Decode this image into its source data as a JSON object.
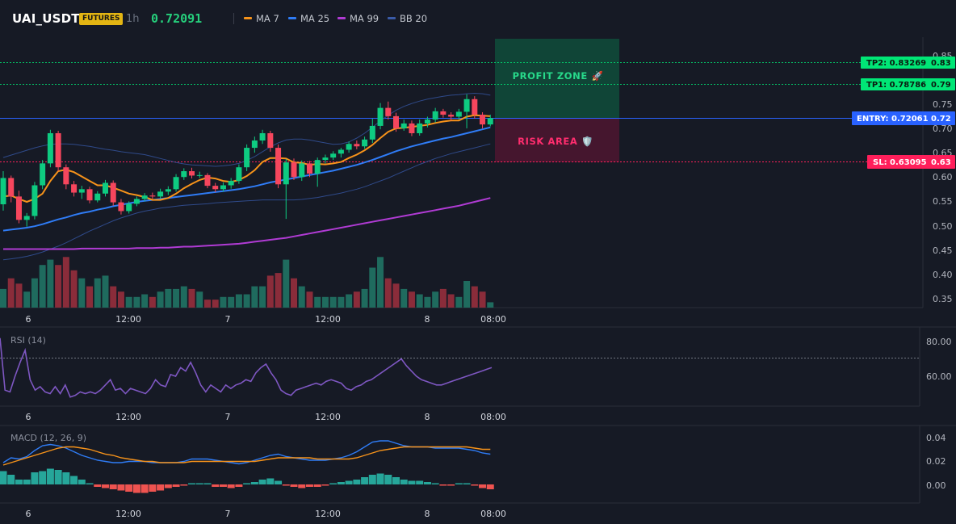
{
  "header": {
    "symbol": "UAI_USDT",
    "badge": "FUTURES",
    "timeframe": "1h",
    "last_price": "0.72091",
    "indicators": [
      {
        "label": "MA 7",
        "color": "#f7931a"
      },
      {
        "label": "MA 25",
        "color": "#2f7cf6"
      },
      {
        "label": "MA 99",
        "color": "#b03bd4"
      },
      {
        "label": "BB 20",
        "color": "#3a5ba8"
      }
    ]
  },
  "price_axis": {
    "ticks": [
      "0.85",
      "0.80",
      "0.75",
      "0.70",
      "0.65",
      "0.60",
      "0.55",
      "0.50",
      "0.45",
      "0.40",
      "0.35"
    ]
  },
  "time_axis": {
    "labels": [
      "6",
      "12:00",
      "7",
      "12:00",
      "8",
      "08:00"
    ]
  },
  "zones": {
    "profit_label": "PROFIT ZONE 🚀",
    "risk_label": "RISK AREA 🛡️"
  },
  "levels": {
    "tp2": {
      "label": "TP2: 0.83269",
      "axis": "0.83",
      "value": 0.83269,
      "color": "#00e676"
    },
    "tp1": {
      "label": "TP1: 0.78786",
      "axis": "0.79",
      "value": 0.78786,
      "color": "#00e676"
    },
    "entry": {
      "label": "ENTRY: 0.72061",
      "axis": "0.72",
      "value": 0.72061,
      "color": "#2962ff"
    },
    "sl": {
      "label": "SL: 0.63095",
      "axis": "0.63",
      "value": 0.63095,
      "color": "#ff1f5b"
    }
  },
  "rsi": {
    "title": "RSI (14)",
    "ticks": [
      "80.00",
      "60.00"
    ],
    "overbought": 70,
    "values": [
      82,
      52,
      51,
      60,
      68,
      75,
      58,
      52,
      54,
      51,
      50,
      54,
      50,
      55,
      48,
      49,
      51,
      50,
      51,
      50,
      52,
      55,
      58,
      52,
      53,
      50,
      53,
      52,
      51,
      50,
      53,
      58,
      55,
      54,
      61,
      60,
      65,
      63,
      68,
      62,
      55,
      51,
      55,
      53,
      51,
      55,
      53,
      55,
      56,
      58,
      57,
      62,
      65,
      67,
      62,
      58,
      52,
      50,
      49,
      52,
      53,
      54,
      55,
      56,
      55,
      57,
      58,
      57,
      56,
      53,
      52,
      54,
      55,
      57,
      58,
      60,
      62,
      64,
      66,
      68,
      70,
      66,
      63,
      60,
      58,
      57,
      56,
      55,
      55,
      56,
      57,
      58,
      59,
      60,
      61,
      62,
      63,
      64,
      65
    ]
  },
  "macd": {
    "title": "MACD (12, 26, 9)",
    "ticks": [
      "0.04",
      "0.02",
      "0.00"
    ]
  },
  "candles": [
    [
      0.544,
      0.598,
      0.531,
      0.612
    ],
    [
      0.598,
      0.56,
      0.548,
      0.603
    ],
    [
      0.56,
      0.512,
      0.505,
      0.572
    ],
    [
      0.512,
      0.52,
      0.498,
      0.526
    ],
    [
      0.52,
      0.583,
      0.513,
      0.59
    ],
    [
      0.583,
      0.628,
      0.575,
      0.635
    ],
    [
      0.628,
      0.69,
      0.62,
      0.697
    ],
    [
      0.69,
      0.62,
      0.612,
      0.695
    ],
    [
      0.62,
      0.585,
      0.575,
      0.626
    ],
    [
      0.585,
      0.568,
      0.56,
      0.592
    ],
    [
      0.568,
      0.575,
      0.555,
      0.582
    ],
    [
      0.575,
      0.552,
      0.546,
      0.58
    ],
    [
      0.552,
      0.566,
      0.548,
      0.571
    ],
    [
      0.566,
      0.588,
      0.56,
      0.594
    ],
    [
      0.588,
      0.548,
      0.541,
      0.593
    ],
    [
      0.548,
      0.53,
      0.523,
      0.555
    ],
    [
      0.53,
      0.545,
      0.525,
      0.55
    ],
    [
      0.545,
      0.555,
      0.54,
      0.56
    ],
    [
      0.555,
      0.562,
      0.55,
      0.567
    ],
    [
      0.562,
      0.56,
      0.555,
      0.568
    ],
    [
      0.56,
      0.57,
      0.556,
      0.576
    ],
    [
      0.57,
      0.575,
      0.563,
      0.581
    ],
    [
      0.575,
      0.6,
      0.57,
      0.606
    ],
    [
      0.6,
      0.612,
      0.594,
      0.618
    ],
    [
      0.612,
      0.603,
      0.597,
      0.619
    ],
    [
      0.603,
      0.604,
      0.598,
      0.611
    ],
    [
      0.604,
      0.582,
      0.577,
      0.608
    ],
    [
      0.582,
      0.575,
      0.569,
      0.588
    ],
    [
      0.575,
      0.583,
      0.57,
      0.589
    ],
    [
      0.583,
      0.592,
      0.576,
      0.598
    ],
    [
      0.592,
      0.62,
      0.586,
      0.626
    ],
    [
      0.62,
      0.66,
      0.612,
      0.667
    ],
    [
      0.66,
      0.675,
      0.65,
      0.683
    ],
    [
      0.675,
      0.69,
      0.668,
      0.697
    ],
    [
      0.69,
      0.66,
      0.652,
      0.695
    ],
    [
      0.66,
      0.585,
      0.577,
      0.667
    ],
    [
      0.585,
      0.63,
      0.514,
      0.637
    ],
    [
      0.63,
      0.6,
      0.594,
      0.638
    ],
    [
      0.6,
      0.628,
      0.592,
      0.634
    ],
    [
      0.628,
      0.607,
      0.6,
      0.633
    ],
    [
      0.607,
      0.635,
      0.58,
      0.64
    ],
    [
      0.635,
      0.64,
      0.628,
      0.646
    ],
    [
      0.64,
      0.648,
      0.635,
      0.653
    ],
    [
      0.648,
      0.656,
      0.64,
      0.66
    ],
    [
      0.656,
      0.668,
      0.65,
      0.673
    ],
    [
      0.668,
      0.663,
      0.657,
      0.675
    ],
    [
      0.663,
      0.677,
      0.658,
      0.683
    ],
    [
      0.677,
      0.705,
      0.67,
      0.72
    ],
    [
      0.705,
      0.742,
      0.698,
      0.752
    ],
    [
      0.742,
      0.725,
      0.718,
      0.755
    ],
    [
      0.725,
      0.7,
      0.693,
      0.732
    ],
    [
      0.7,
      0.71,
      0.695,
      0.718
    ],
    [
      0.71,
      0.69,
      0.684,
      0.716
    ],
    [
      0.69,
      0.71,
      0.685,
      0.718
    ],
    [
      0.71,
      0.718,
      0.702,
      0.724
    ],
    [
      0.718,
      0.735,
      0.712,
      0.742
    ],
    [
      0.735,
      0.728,
      0.722,
      0.74
    ],
    [
      0.728,
      0.724,
      0.716,
      0.733
    ],
    [
      0.724,
      0.734,
      0.718,
      0.74
    ],
    [
      0.734,
      0.76,
      0.7,
      0.77
    ],
    [
      0.76,
      0.728,
      0.72,
      0.766
    ],
    [
      0.728,
      0.708,
      0.7,
      0.733
    ],
    [
      0.708,
      0.721,
      0.704,
      0.728
    ]
  ],
  "ma": {
    "ma7": [
      0.56,
      0.562,
      0.555,
      0.549,
      0.555,
      0.566,
      0.592,
      0.612,
      0.615,
      0.61,
      0.601,
      0.592,
      0.583,
      0.583,
      0.578,
      0.572,
      0.566,
      0.563,
      0.559,
      0.553,
      0.553,
      0.557,
      0.566,
      0.577,
      0.586,
      0.594,
      0.599,
      0.597,
      0.592,
      0.59,
      0.594,
      0.602,
      0.614,
      0.631,
      0.639,
      0.639,
      0.638,
      0.63,
      0.629,
      0.625,
      0.627,
      0.626,
      0.628,
      0.631,
      0.639,
      0.646,
      0.655,
      0.666,
      0.68,
      0.693,
      0.7,
      0.701,
      0.703,
      0.705,
      0.707,
      0.711,
      0.714,
      0.716,
      0.716,
      0.724,
      0.727,
      0.726,
      0.725
    ],
    "ma25": [
      0.49,
      0.492,
      0.494,
      0.496,
      0.499,
      0.503,
      0.508,
      0.513,
      0.517,
      0.522,
      0.526,
      0.529,
      0.533,
      0.536,
      0.54,
      0.543,
      0.546,
      0.549,
      0.551,
      0.553,
      0.555,
      0.557,
      0.559,
      0.561,
      0.563,
      0.565,
      0.567,
      0.569,
      0.571,
      0.573,
      0.575,
      0.578,
      0.581,
      0.585,
      0.589,
      0.592,
      0.595,
      0.598,
      0.601,
      0.604,
      0.607,
      0.61,
      0.613,
      0.617,
      0.621,
      0.625,
      0.63,
      0.635,
      0.641,
      0.647,
      0.653,
      0.658,
      0.663,
      0.667,
      0.671,
      0.675,
      0.679,
      0.682,
      0.686,
      0.69,
      0.694,
      0.698,
      0.702
    ],
    "ma99": [
      0.452,
      0.452,
      0.452,
      0.452,
      0.452,
      0.452,
      0.452,
      0.452,
      0.452,
      0.452,
      0.453,
      0.453,
      0.453,
      0.453,
      0.453,
      0.453,
      0.453,
      0.454,
      0.454,
      0.454,
      0.455,
      0.455,
      0.456,
      0.457,
      0.457,
      0.458,
      0.459,
      0.46,
      0.461,
      0.462,
      0.463,
      0.465,
      0.467,
      0.469,
      0.471,
      0.473,
      0.475,
      0.478,
      0.481,
      0.484,
      0.487,
      0.49,
      0.493,
      0.496,
      0.499,
      0.502,
      0.505,
      0.508,
      0.511,
      0.514,
      0.517,
      0.52,
      0.523,
      0.526,
      0.529,
      0.532,
      0.535,
      0.538,
      0.541,
      0.545,
      0.549,
      0.553,
      0.557
    ],
    "bb_upper": [
      0.64,
      0.645,
      0.65,
      0.655,
      0.66,
      0.664,
      0.667,
      0.668,
      0.668,
      0.667,
      0.665,
      0.663,
      0.66,
      0.657,
      0.655,
      0.652,
      0.65,
      0.648,
      0.646,
      0.642,
      0.638,
      0.634,
      0.63,
      0.627,
      0.625,
      0.624,
      0.623,
      0.622,
      0.623,
      0.625,
      0.628,
      0.634,
      0.642,
      0.652,
      0.662,
      0.67,
      0.676,
      0.678,
      0.678,
      0.676,
      0.673,
      0.67,
      0.667,
      0.668,
      0.672,
      0.68,
      0.69,
      0.702,
      0.715,
      0.727,
      0.737,
      0.745,
      0.751,
      0.756,
      0.76,
      0.763,
      0.766,
      0.768,
      0.769,
      0.771,
      0.772,
      0.771,
      0.768
    ],
    "bb_lower": [
      0.43,
      0.432,
      0.434,
      0.437,
      0.441,
      0.446,
      0.452,
      0.458,
      0.465,
      0.473,
      0.481,
      0.489,
      0.496,
      0.503,
      0.51,
      0.516,
      0.521,
      0.526,
      0.53,
      0.533,
      0.536,
      0.538,
      0.54,
      0.542,
      0.543,
      0.544,
      0.545,
      0.547,
      0.548,
      0.549,
      0.55,
      0.551,
      0.552,
      0.553,
      0.553,
      0.553,
      0.553,
      0.553,
      0.554,
      0.556,
      0.558,
      0.561,
      0.564,
      0.567,
      0.571,
      0.575,
      0.58,
      0.586,
      0.592,
      0.598,
      0.605,
      0.612,
      0.619,
      0.626,
      0.632,
      0.638,
      0.643,
      0.648,
      0.652,
      0.656,
      0.66,
      0.664,
      0.668
    ]
  },
  "volumes": [
    0.35,
    0.55,
    0.45,
    0.3,
    0.55,
    0.8,
    0.9,
    0.8,
    0.95,
    0.7,
    0.55,
    0.4,
    0.55,
    0.6,
    0.4,
    0.3,
    0.2,
    0.2,
    0.25,
    0.2,
    0.3,
    0.35,
    0.35,
    0.4,
    0.35,
    0.3,
    0.15,
    0.15,
    0.2,
    0.2,
    0.25,
    0.25,
    0.4,
    0.4,
    0.6,
    0.65,
    0.9,
    0.55,
    0.4,
    0.3,
    0.2,
    0.2,
    0.2,
    0.2,
    0.25,
    0.3,
    0.35,
    0.75,
    0.95,
    0.55,
    0.45,
    0.35,
    0.3,
    0.25,
    0.2,
    0.3,
    0.35,
    0.25,
    0.2,
    0.5,
    0.4,
    0.3,
    0.1
  ]
}
